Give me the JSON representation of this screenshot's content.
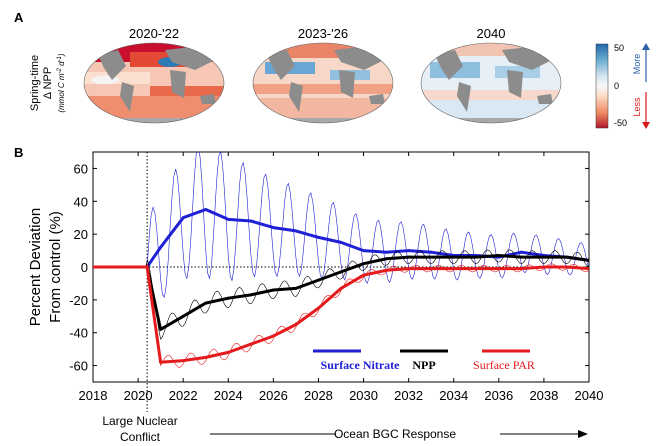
{
  "panel_a": {
    "label": "A",
    "maps": [
      {
        "title": "2020-'22"
      },
      {
        "title": "2023-'26"
      },
      {
        "title": "2040"
      }
    ],
    "ylabel_line1": "Spring-time",
    "ylabel_line2": "Δ NPP",
    "ylabel_line3": "(mmol C m",
    "ylabel_sup1": "-2",
    "ylabel_mid": " d",
    "ylabel_sup2": "-1",
    "ylabel_end": ")",
    "colorbar": {
      "ticks": [
        "50",
        "0",
        "-50"
      ],
      "more_label": "More",
      "less_label": "Less",
      "more_color": "#2b5fa8",
      "less_color": "#d7191c",
      "colors": [
        "#2166ac",
        "#67a9cf",
        "#d1e5f0",
        "#f7f7f7",
        "#fddbc7",
        "#ef8a62",
        "#b2182b"
      ]
    }
  },
  "panel_b": {
    "label": "B",
    "conflict_label_line1": "Large Nuclear",
    "conflict_label_line2": "Conflict",
    "response_label": "Ocean BGC Response"
  },
  "chart_data": {
    "type": "line",
    "ylabel_line1": "Percent Deviation",
    "ylabel_line2": "From control (%)",
    "xlim": [
      2018,
      2040
    ],
    "ylim": [
      -70,
      70
    ],
    "xticks": [
      2018,
      2020,
      2022,
      2024,
      2026,
      2028,
      2030,
      2032,
      2034,
      2036,
      2038,
      2040
    ],
    "yticks": [
      60,
      40,
      20,
      0,
      -20,
      -40,
      -60
    ],
    "conflict_year": 2020.4,
    "series": [
      {
        "name": "Surface Nitrate",
        "color": "#1f1fd6",
        "annual": [
          [
            2018,
            0
          ],
          [
            2019,
            0
          ],
          [
            2020,
            0
          ],
          [
            2020.4,
            0
          ],
          [
            2021,
            12
          ],
          [
            2022,
            30
          ],
          [
            2023,
            35
          ],
          [
            2024,
            29
          ],
          [
            2025,
            28
          ],
          [
            2026,
            24
          ],
          [
            2027,
            22
          ],
          [
            2028,
            18
          ],
          [
            2029,
            15
          ],
          [
            2030,
            10
          ],
          [
            2031,
            9
          ],
          [
            2032,
            10
          ],
          [
            2033,
            9
          ],
          [
            2034,
            7
          ],
          [
            2035,
            7
          ],
          [
            2036,
            6
          ],
          [
            2037,
            9
          ],
          [
            2038,
            7
          ],
          [
            2039,
            6
          ],
          [
            2040,
            4
          ]
        ],
        "monthly_amplitude": [
          [
            2020.4,
            30
          ],
          [
            2023,
            42
          ],
          [
            2026,
            30
          ],
          [
            2030,
            20
          ],
          [
            2035,
            14
          ],
          [
            2040,
            10
          ]
        ]
      },
      {
        "name": "NPP",
        "color": "#000000",
        "annual": [
          [
            2018,
            0
          ],
          [
            2019,
            0
          ],
          [
            2020,
            0
          ],
          [
            2020.4,
            0
          ],
          [
            2021,
            -38
          ],
          [
            2022,
            -30
          ],
          [
            2023,
            -22
          ],
          [
            2024,
            -19
          ],
          [
            2025,
            -17
          ],
          [
            2026,
            -14
          ],
          [
            2027,
            -13
          ],
          [
            2028,
            -8
          ],
          [
            2029,
            -3
          ],
          [
            2030,
            2
          ],
          [
            2031,
            5
          ],
          [
            2032,
            6
          ],
          [
            2033,
            6
          ],
          [
            2034,
            6
          ],
          [
            2035,
            6
          ],
          [
            2036,
            7
          ],
          [
            2037,
            6
          ],
          [
            2038,
            6
          ],
          [
            2039,
            6
          ],
          [
            2040,
            4
          ]
        ],
        "monthly_amplitude": [
          [
            2020.4,
            6
          ],
          [
            2023,
            6
          ],
          [
            2027,
            5
          ],
          [
            2030,
            4
          ],
          [
            2040,
            4
          ]
        ]
      },
      {
        "name": "Surface PAR",
        "color": "#e41a1c",
        "annual": [
          [
            2018,
            0
          ],
          [
            2019,
            0
          ],
          [
            2020,
            0
          ],
          [
            2020.4,
            0
          ],
          [
            2021,
            -58
          ],
          [
            2022,
            -57
          ],
          [
            2023,
            -55
          ],
          [
            2024,
            -52
          ],
          [
            2025,
            -47
          ],
          [
            2026,
            -42
          ],
          [
            2027,
            -35
          ],
          [
            2028,
            -25
          ],
          [
            2029,
            -13
          ],
          [
            2030,
            -5
          ],
          [
            2031,
            -2
          ],
          [
            2032,
            -1
          ],
          [
            2033,
            -1
          ],
          [
            2034,
            -1
          ],
          [
            2035,
            -1
          ],
          [
            2036,
            -1
          ],
          [
            2037,
            -1
          ],
          [
            2038,
            0
          ],
          [
            2039,
            0
          ],
          [
            2040,
            -1
          ]
        ],
        "monthly_amplitude": [
          [
            2020.4,
            4
          ],
          [
            2024,
            4
          ],
          [
            2029,
            3
          ],
          [
            2032,
            2
          ],
          [
            2040,
            2
          ]
        ]
      }
    ]
  }
}
